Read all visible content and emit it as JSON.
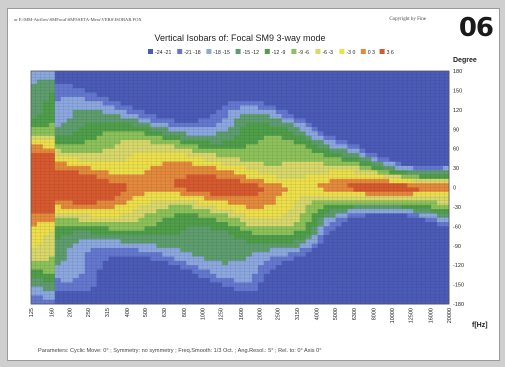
{
  "header": {
    "file_path": "ar E:\\MM-Airflow\\SMFocal\\SM9\\SETA-Mess\\VERS\\ISOBAR.FOX",
    "copyright": "Copyright by Fine",
    "page_number": "06"
  },
  "chart_data": {
    "type": "heatmap",
    "title": "Vertical Isobars of:   Focal  SM9  3-way mode",
    "xlabel": "f[Hz]",
    "ylabel": "Degree",
    "x_ticks": [
      "125",
      "160",
      "200",
      "250",
      "315",
      "400",
      "500",
      "630",
      "800",
      "1000",
      "1250",
      "1600",
      "2000",
      "2500",
      "3150",
      "4000",
      "5000",
      "6300",
      "8000",
      "10000",
      "12500",
      "16000",
      "20000"
    ],
    "x_scale": "log",
    "xlim": [
      125,
      20000
    ],
    "y_ticks": [
      180,
      150,
      120,
      90,
      60,
      30,
      0,
      -30,
      -60,
      -90,
      -120,
      -150,
      -180
    ],
    "ylim": [
      -180,
      180
    ],
    "legend_position": "top",
    "legend": [
      {
        "label": "-24 -21",
        "color": "#4b5bb8"
      },
      {
        "label": "-21 -18",
        "color": "#6478d0"
      },
      {
        "label": "-18 -15",
        "color": "#8ca8e0"
      },
      {
        "label": "-15 -12",
        "color": "#5e9e6e"
      },
      {
        "label": "-12 -9",
        "color": "#4f9f4a"
      },
      {
        "label": "-9 -6",
        "color": "#8dc25a"
      },
      {
        "label": "-6 -3",
        "color": "#d9d86a"
      },
      {
        "label": "-3 0",
        "color": "#ede04a"
      },
      {
        "label": "0 3",
        "color": "#e58a3c"
      },
      {
        "label": "3 6",
        "color": "#d75a2e"
      }
    ],
    "parameters": "Parameters:  Cyclic Move:  0°  ;  Symmetry:  no symmetry  ;  Freq.Smooth:  1/3  Oct.  ;  Ang.Resol.:  5°  ;  Rel. to:  0°  Axis    0°"
  }
}
